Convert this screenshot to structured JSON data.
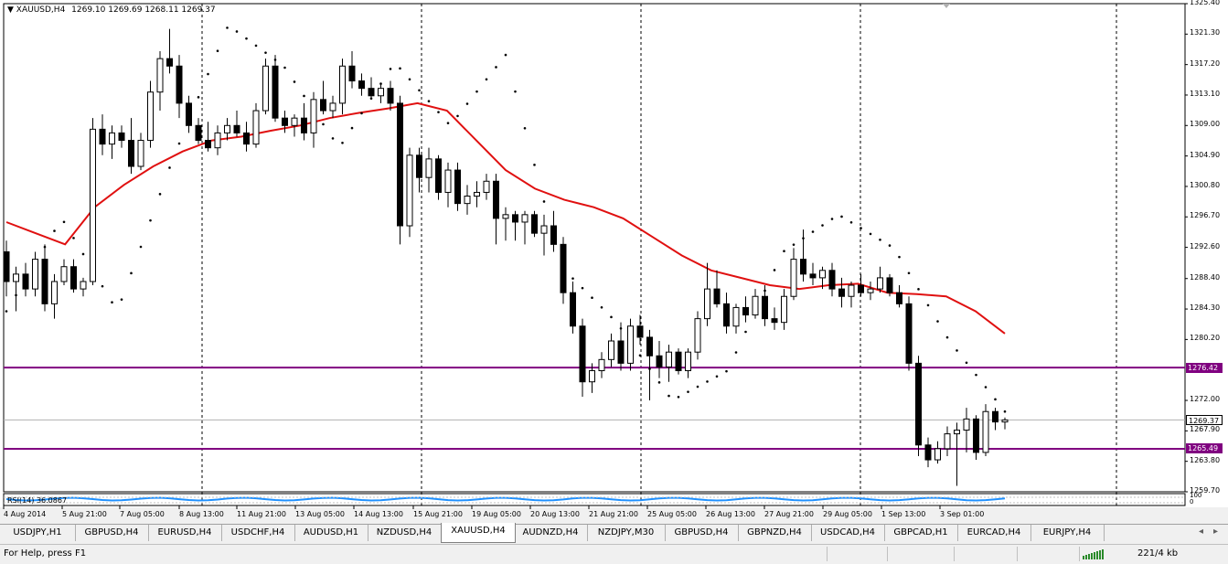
{
  "chart": {
    "symbol": "XAUUSD,H4",
    "ohlc_header": "1269.10 1269.69 1268.11 1269.37",
    "rsi_label": "RSI(14) 36.0867",
    "price_scale": [
      "1325.40",
      "1321.30",
      "1317.20",
      "1313.10",
      "1309.00",
      "1304.90",
      "1300.80",
      "1296.70",
      "1292.60",
      "1288.40",
      "1284.30",
      "1280.20",
      "1272.00",
      "1267.90",
      "1263.80",
      "1259.70"
    ],
    "rsi_scale": "100",
    "rsi_scale_bottom": "0",
    "levels": {
      "upper": "1276.42",
      "lower": "1265.49",
      "current": "1269.37"
    },
    "time_labels": [
      "4 Aug 2014",
      "5 Aug 21:00",
      "7 Aug 05:00",
      "8 Aug 13:00",
      "11 Aug 21:00",
      "13 Aug 05:00",
      "14 Aug 13:00",
      "15 Aug 21:00",
      "19 Aug 05:00",
      "20 Aug 13:00",
      "21 Aug 21:00",
      "25 Aug 05:00",
      "26 Aug 13:00",
      "27 Aug 21:00",
      "29 Aug 05:00",
      "1 Sep 13:00",
      "3 Sep 01:00"
    ],
    "colors": {
      "ma": "#e01010",
      "level": "#800080",
      "rsi": "#1e90ff",
      "candle": "#000000"
    }
  },
  "chart_data": {
    "type": "candlestick",
    "symbol": "XAUUSD",
    "timeframe": "H4",
    "ylim": [
      1259.7,
      1325.4
    ],
    "candles": [
      [
        1292.0,
        1293.5,
        1286.0,
        1288.0
      ],
      [
        1288.0,
        1290.0,
        1284.0,
        1289.0
      ],
      [
        1289.0,
        1290.5,
        1286.0,
        1287.0
      ],
      [
        1287.0,
        1292.0,
        1286.0,
        1291.0
      ],
      [
        1291.0,
        1293.0,
        1284.0,
        1285.0
      ],
      [
        1285.0,
        1289.0,
        1283.0,
        1288.0
      ],
      [
        1288.0,
        1291.0,
        1287.5,
        1290.0
      ],
      [
        1290.0,
        1291.0,
        1286.5,
        1287.0
      ],
      [
        1287.0,
        1288.5,
        1286.0,
        1288.0
      ],
      [
        1288.0,
        1310.0,
        1287.5,
        1308.5
      ],
      [
        1308.5,
        1310.5,
        1305.0,
        1306.5
      ],
      [
        1306.5,
        1309.0,
        1304.5,
        1308.0
      ],
      [
        1308.0,
        1309.0,
        1306.0,
        1307.0
      ],
      [
        1307.0,
        1310.0,
        1302.5,
        1303.5
      ],
      [
        1303.5,
        1308.0,
        1303.0,
        1307.0
      ],
      [
        1307.0,
        1315.0,
        1306.0,
        1313.5
      ],
      [
        1313.5,
        1319.0,
        1311.0,
        1318.0
      ],
      [
        1318.0,
        1322.0,
        1316.0,
        1317.0
      ],
      [
        1317.0,
        1318.5,
        1310.0,
        1312.0
      ],
      [
        1312.0,
        1313.0,
        1308.0,
        1309.0
      ],
      [
        1309.0,
        1310.0,
        1306.5,
        1307.0
      ],
      [
        1307.0,
        1309.5,
        1305.5,
        1306.0
      ],
      [
        1306.0,
        1309.0,
        1305.0,
        1308.0
      ],
      [
        1308.0,
        1310.0,
        1307.0,
        1309.0
      ],
      [
        1309.0,
        1311.0,
        1307.5,
        1308.0
      ],
      [
        1308.0,
        1309.5,
        1305.5,
        1306.5
      ],
      [
        1306.5,
        1312.0,
        1306.0,
        1311.0
      ],
      [
        1311.0,
        1318.0,
        1310.5,
        1317.0
      ],
      [
        1317.0,
        1318.5,
        1309.5,
        1310.0
      ],
      [
        1310.0,
        1311.0,
        1308.0,
        1309.0
      ],
      [
        1309.0,
        1310.5,
        1307.5,
        1310.0
      ],
      [
        1310.0,
        1312.0,
        1307.0,
        1308.0
      ],
      [
        1308.0,
        1313.5,
        1306.0,
        1312.5
      ],
      [
        1312.5,
        1315.0,
        1310.5,
        1311.0
      ],
      [
        1311.0,
        1313.0,
        1310.0,
        1312.0
      ],
      [
        1312.0,
        1318.0,
        1310.5,
        1317.0
      ],
      [
        1317.0,
        1319.0,
        1314.0,
        1315.0
      ],
      [
        1315.0,
        1316.0,
        1313.0,
        1314.0
      ],
      [
        1314.0,
        1315.5,
        1312.5,
        1313.0
      ],
      [
        1313.0,
        1314.5,
        1312.0,
        1314.0
      ],
      [
        1314.0,
        1315.0,
        1311.0,
        1312.0
      ],
      [
        1312.0,
        1313.0,
        1293.0,
        1295.5
      ],
      [
        1295.5,
        1306.0,
        1294.0,
        1305.0
      ],
      [
        1305.0,
        1306.0,
        1300.0,
        1302.0
      ],
      [
        1302.0,
        1306.0,
        1300.0,
        1304.5
      ],
      [
        1304.5,
        1305.0,
        1299.0,
        1300.0
      ],
      [
        1300.0,
        1304.0,
        1298.0,
        1303.0
      ],
      [
        1303.0,
        1304.0,
        1297.5,
        1298.5
      ],
      [
        1298.5,
        1301.0,
        1297.0,
        1299.5
      ],
      [
        1299.5,
        1301.5,
        1298.0,
        1300.0
      ],
      [
        1300.0,
        1302.5,
        1299.0,
        1301.5
      ],
      [
        1301.5,
        1302.5,
        1293.0,
        1296.5
      ],
      [
        1296.5,
        1298.0,
        1293.5,
        1297.0
      ],
      [
        1297.0,
        1297.5,
        1293.5,
        1296.0
      ],
      [
        1296.0,
        1297.5,
        1293.0,
        1297.0
      ],
      [
        1297.0,
        1297.5,
        1294.0,
        1294.5
      ],
      [
        1294.5,
        1297.0,
        1291.5,
        1295.5
      ],
      [
        1295.5,
        1297.5,
        1292.0,
        1293.0
      ],
      [
        1293.0,
        1294.0,
        1285.0,
        1286.5
      ],
      [
        1286.5,
        1288.0,
        1281.0,
        1282.0
      ],
      [
        1282.0,
        1283.0,
        1272.5,
        1274.5
      ],
      [
        1274.5,
        1277.0,
        1273.0,
        1276.0
      ],
      [
        1276.0,
        1278.5,
        1275.0,
        1277.5
      ],
      [
        1277.5,
        1281.0,
        1276.5,
        1280.0
      ],
      [
        1280.0,
        1282.5,
        1276.0,
        1277.0
      ],
      [
        1277.0,
        1283.0,
        1276.0,
        1282.0
      ],
      [
        1282.0,
        1283.5,
        1279.5,
        1280.5
      ],
      [
        1280.5,
        1281.5,
        1272.0,
        1278.0
      ],
      [
        1278.0,
        1280.0,
        1275.0,
        1276.5
      ],
      [
        1276.5,
        1279.5,
        1274.5,
        1278.5
      ],
      [
        1278.5,
        1279.0,
        1275.5,
        1276.0
      ],
      [
        1276.0,
        1279.0,
        1275.0,
        1278.5
      ],
      [
        1278.5,
        1284.0,
        1277.5,
        1283.0
      ],
      [
        1283.0,
        1290.5,
        1282.0,
        1287.0
      ],
      [
        1287.0,
        1289.5,
        1284.5,
        1285.0
      ],
      [
        1285.0,
        1286.5,
        1281.0,
        1282.0
      ],
      [
        1282.0,
        1285.0,
        1281.0,
        1284.5
      ],
      [
        1284.5,
        1286.0,
        1282.5,
        1283.5
      ],
      [
        1283.5,
        1287.0,
        1283.0,
        1286.0
      ],
      [
        1286.0,
        1287.5,
        1282.0,
        1283.0
      ],
      [
        1283.0,
        1284.5,
        1281.5,
        1282.5
      ],
      [
        1282.5,
        1287.0,
        1281.5,
        1286.0
      ],
      [
        1286.0,
        1292.5,
        1285.5,
        1291.0
      ],
      [
        1291.0,
        1295.0,
        1288.0,
        1289.0
      ],
      [
        1289.0,
        1290.5,
        1287.5,
        1288.5
      ],
      [
        1288.5,
        1290.0,
        1287.0,
        1289.5
      ],
      [
        1289.5,
        1290.5,
        1286.0,
        1287.0
      ],
      [
        1287.0,
        1288.5,
        1284.5,
        1286.0
      ],
      [
        1286.0,
        1288.0,
        1284.5,
        1287.5
      ],
      [
        1287.5,
        1289.0,
        1286.0,
        1286.5
      ],
      [
        1286.5,
        1288.0,
        1285.5,
        1287.0
      ],
      [
        1287.0,
        1290.0,
        1286.5,
        1288.5
      ],
      [
        1288.5,
        1289.0,
        1286.0,
        1286.5
      ],
      [
        1286.5,
        1287.5,
        1284.5,
        1285.0
      ],
      [
        1285.0,
        1286.0,
        1276.0,
        1277.0
      ],
      [
        1277.0,
        1278.0,
        1264.5,
        1266.0
      ],
      [
        1266.0,
        1267.0,
        1263.0,
        1264.0
      ],
      [
        1264.0,
        1266.5,
        1263.5,
        1265.5
      ],
      [
        1265.5,
        1268.5,
        1264.5,
        1267.5
      ],
      [
        1267.5,
        1269.0,
        1260.5,
        1268.0
      ],
      [
        1268.0,
        1271.0,
        1265.0,
        1269.5
      ],
      [
        1269.5,
        1270.0,
        1264.0,
        1265.0
      ],
      [
        1265.0,
        1271.5,
        1264.5,
        1270.5
      ],
      [
        1270.5,
        1271.0,
        1268.0,
        1269.1
      ],
      [
        1269.1,
        1269.69,
        1268.11,
        1269.37
      ]
    ],
    "moving_average": [
      1296.0,
      1294.5,
      1293.0,
      1298.0,
      1301.0,
      1303.5,
      1305.5,
      1307.0,
      1307.5,
      1308.3,
      1309.0,
      1310.0,
      1310.7,
      1311.3,
      1312.0,
      1311.0,
      1307.0,
      1303.0,
      1300.5,
      1299.0,
      1298.0,
      1296.5,
      1294.0,
      1291.5,
      1289.5,
      1288.5,
      1287.5,
      1287.0,
      1287.5,
      1287.7,
      1286.5,
      1286.3,
      1286.0,
      1284.0,
      1281.0
    ],
    "sar": [
      1284.0,
      1296.5,
      1284.0,
      1304.5,
      1322.5,
      1317.0,
      1306.0,
      1317.5,
      1309.0,
      1318.5,
      1290.0,
      1282.5,
      1272.0,
      1276.0,
      1292.0,
      1297.0,
      1292.5,
      1280.0,
      1270.5
    ],
    "horizontal_levels": [
      1276.42,
      1265.49
    ],
    "last_price": 1269.37,
    "indicator": {
      "name": "RSI(14)",
      "value": 36.0867
    },
    "x_tick_labels": [
      "4 Aug 2014",
      "5 Aug 21:00",
      "7 Aug 05:00",
      "8 Aug 13:00",
      "11 Aug 21:00",
      "13 Aug 05:00",
      "14 Aug 13:00",
      "15 Aug 21:00",
      "19 Aug 05:00",
      "20 Aug 13:00",
      "21 Aug 21:00",
      "25 Aug 05:00",
      "26 Aug 13:00",
      "27 Aug 21:00",
      "29 Aug 05:00",
      "1 Sep 13:00",
      "3 Sep 01:00"
    ],
    "y_tick_labels": [
      "1325.40",
      "1321.30",
      "1317.20",
      "1313.10",
      "1309.00",
      "1304.90",
      "1300.80",
      "1296.70",
      "1292.60",
      "1288.40",
      "1284.30",
      "1280.20",
      "1272.00",
      "1267.90",
      "1263.80",
      "1259.70"
    ]
  },
  "tabs": [
    "USDJPY,H1",
    "GBPUSD,H4",
    "EURUSD,H4",
    "USDCHF,H4",
    "AUDUSD,H1",
    "NZDUSD,H4",
    "XAUUSD,H4",
    "AUDNZD,H4",
    "NZDJPY,M30",
    "GBPUSD,H4",
    "GBPNZD,H4",
    "USDCAD,H4",
    "GBPCAD,H1",
    "EURCAD,H4",
    "EURJPY,H4"
  ],
  "active_tab": "XAUUSD,H4",
  "status": {
    "help": "For Help, press F1",
    "traffic": "221/4 kb"
  }
}
